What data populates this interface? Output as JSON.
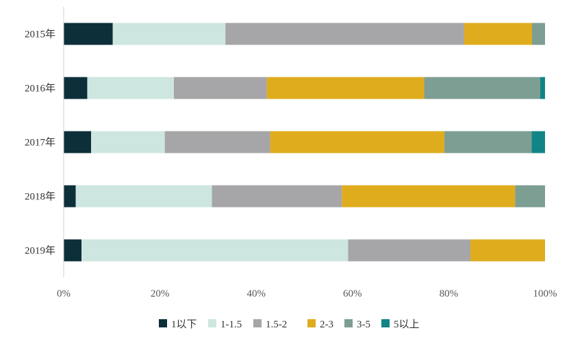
{
  "chart_data": {
    "type": "bar",
    "orientation": "horizontal",
    "stacked": "percent",
    "categories": [
      "2015年",
      "2016年",
      "2017年",
      "2018年",
      "2019年"
    ],
    "series": [
      {
        "name": "1以下",
        "color": "#0d2f3a",
        "values": [
          10.2,
          4.9,
          5.7,
          2.5,
          3.7
        ]
      },
      {
        "name": "1-1.5",
        "color": "#cde6df",
        "values": [
          23.4,
          18.0,
          15.3,
          28.3,
          55.4
        ]
      },
      {
        "name": "1.5-2",
        "color": "#a6a5a7",
        "values": [
          49.6,
          19.3,
          21.9,
          27.0,
          25.4
        ]
      },
      {
        "name": "2-3",
        "color": "#dfac1e",
        "values": [
          14.1,
          32.7,
          36.2,
          36.0,
          15.5
        ]
      },
      {
        "name": "3-5",
        "color": "#7c9e93",
        "values": [
          2.7,
          24.1,
          18.1,
          6.2,
          0
        ]
      },
      {
        "name": "5以上",
        "color": "#118486",
        "values": [
          0,
          1.0,
          2.8,
          0,
          0
        ]
      }
    ],
    "xlim": [
      0,
      100
    ],
    "xticks": [
      "0%",
      "20%",
      "40%",
      "60%",
      "80%",
      "100%"
    ],
    "grid": false,
    "legend_position": "bottom"
  }
}
